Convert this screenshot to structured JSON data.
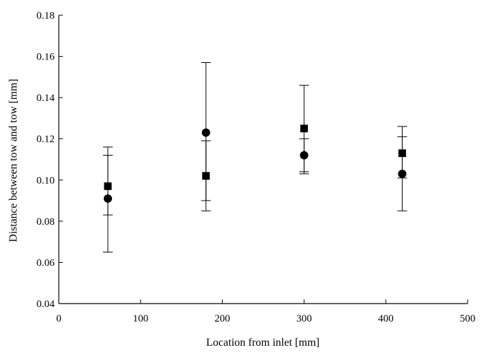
{
  "chart_data": {
    "type": "scatter",
    "title": "",
    "xlabel": "Location from inlet [mm]",
    "ylabel": "Distance between tow and tow [mm]",
    "xlim": [
      0,
      500
    ],
    "ylim": [
      0.04,
      0.18
    ],
    "xticks": [
      0,
      100,
      200,
      300,
      400,
      500
    ],
    "yticks": [
      0.04,
      0.06,
      0.08,
      0.1,
      0.12,
      0.14,
      0.16,
      0.18
    ],
    "xtick_labels": [
      "0",
      "100",
      "200",
      "300",
      "400",
      "500"
    ],
    "ytick_labels": [
      "0.04",
      "0.06",
      "0.08",
      "0.10",
      "0.12",
      "0.14",
      "0.16",
      "0.18"
    ],
    "grid": false,
    "legend": "none",
    "series": [
      {
        "marker": "square",
        "color": "#000000",
        "points": [
          {
            "x": 60,
            "y": 0.097,
            "err_low": 0.083,
            "err_high": 0.112
          },
          {
            "x": 180,
            "y": 0.102,
            "err_low": 0.085,
            "err_high": 0.119
          },
          {
            "x": 300,
            "y": 0.125,
            "err_low": 0.104,
            "err_high": 0.146
          },
          {
            "x": 420,
            "y": 0.113,
            "err_low": 0.101,
            "err_high": 0.126
          }
        ]
      },
      {
        "marker": "circle",
        "color": "#000000",
        "points": [
          {
            "x": 60,
            "y": 0.091,
            "err_low": 0.065,
            "err_high": 0.116
          },
          {
            "x": 180,
            "y": 0.123,
            "err_low": 0.09,
            "err_high": 0.157
          },
          {
            "x": 300,
            "y": 0.112,
            "err_low": 0.103,
            "err_high": 0.12
          },
          {
            "x": 420,
            "y": 0.103,
            "err_low": 0.085,
            "err_high": 0.121
          }
        ]
      }
    ]
  }
}
